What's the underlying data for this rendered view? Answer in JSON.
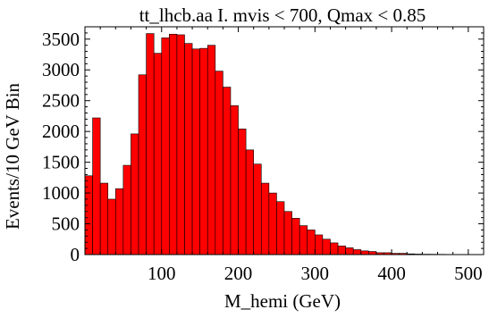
{
  "chart_data": {
    "type": "bar",
    "title": "tt_lhcb.aa I. mvis < 700, Qmax < 0.85",
    "xlabel": "M_hemi (GeV)",
    "ylabel": "Events/10 GeV Bin",
    "xlim": [
      0,
      520
    ],
    "ylim": [
      0,
      3700
    ],
    "x_ticks": [
      100,
      200,
      300,
      400,
      500
    ],
    "y_ticks": [
      0,
      500,
      1000,
      1500,
      2000,
      2500,
      3000,
      3500
    ],
    "bin_width": 10,
    "bin_lower_edges": [
      0,
      10,
      20,
      30,
      40,
      50,
      60,
      70,
      80,
      90,
      100,
      110,
      120,
      130,
      140,
      150,
      160,
      170,
      180,
      190,
      200,
      210,
      220,
      230,
      240,
      250,
      260,
      270,
      280,
      290,
      300,
      310,
      320,
      330,
      340,
      350,
      360,
      370,
      380,
      390,
      400,
      410,
      420,
      430,
      440,
      450,
      460,
      470,
      480,
      490,
      500,
      510
    ],
    "values": [
      1280,
      2220,
      1160,
      900,
      1070,
      1450,
      1960,
      2920,
      3590,
      3270,
      3520,
      3580,
      3570,
      3430,
      3340,
      3350,
      3400,
      2980,
      2720,
      2420,
      2040,
      1700,
      1470,
      1160,
      1000,
      860,
      700,
      590,
      470,
      400,
      320,
      250,
      190,
      140,
      110,
      80,
      60,
      50,
      30,
      30,
      20,
      20,
      12,
      8,
      6,
      5,
      4,
      3,
      2,
      2,
      1,
      1
    ],
    "bar_color": "#ff0000",
    "grid": false,
    "frame": "box with ticks on all sides"
  }
}
